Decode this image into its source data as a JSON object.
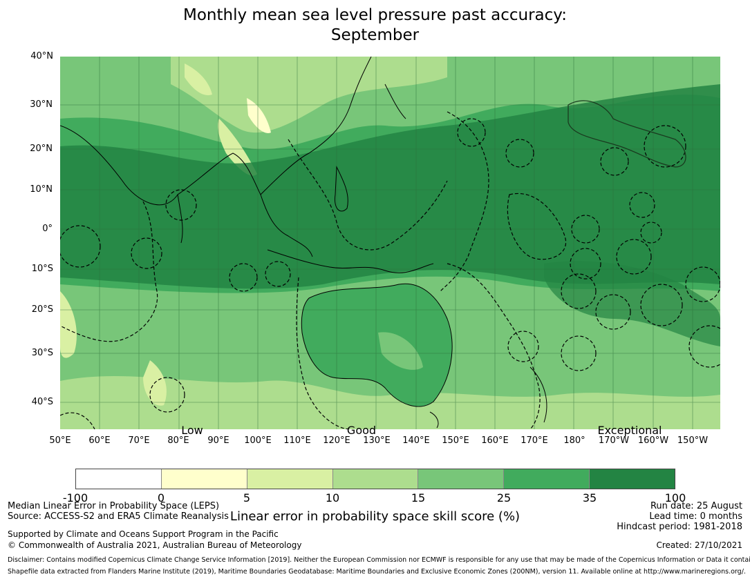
{
  "title": {
    "line1": "Monthly mean sea level pressure past accuracy:",
    "line2": "September"
  },
  "map": {
    "lat_labels": [
      "40°N",
      "30°N",
      "20°N",
      "10°N",
      "0°",
      "10°S",
      "20°S",
      "30°S",
      "40°S"
    ],
    "lon_labels": [
      "50°E",
      "60°E",
      "70°E",
      "80°E",
      "90°E",
      "100°E",
      "110°E",
      "120°E",
      "130°E",
      "140°E",
      "150°E",
      "160°E",
      "170°E",
      "180°",
      "170°W",
      "160°W",
      "150°W"
    ],
    "categories": [
      "Low",
      "Good",
      "Exceptional"
    ]
  },
  "colorbar": {
    "ticks": [
      "-100",
      "0",
      "5",
      "10",
      "15",
      "25",
      "35",
      "100"
    ],
    "colors": [
      "#ffffff",
      "#ffffcc",
      "#d9f0a3",
      "#addd8e",
      "#78c679",
      "#41ab5d",
      "#238443"
    ],
    "label": "Linear error in probability space skill score (%)"
  },
  "footer": {
    "method": "Median Linear Error in Probability Space (LEPS)",
    "source": "Source: ACCESS-S2 and ERA5 Climate Reanalysis",
    "support": "Supported by Climate and Oceans Support Program in the Pacific",
    "copyright": "© Commonwealth of Australia 2021, Australian Bureau of Meteorology",
    "run_date": "Run date: 25 August",
    "lead_time": "Lead time: 0 months",
    "hindcast": "Hindcast period: 1981-2018",
    "created": "Created: 27/10/2021",
    "disclaimer": "Disclaimer: Contains modified Copernicus Climate Change Service Information [2019]. Neither the European Commission nor ECMWF is responsible for any use that may be made of the Copernicus Information or Data it contains.",
    "shapefile": "Shapefile data extracted from Flanders Marine Institute (2019), Maritime Boundaries Geodatabase: Maritime Boundaries and Exclusive Economic Zones (200NM), version 11. Available online at http://www.marineregions.org/."
  }
}
